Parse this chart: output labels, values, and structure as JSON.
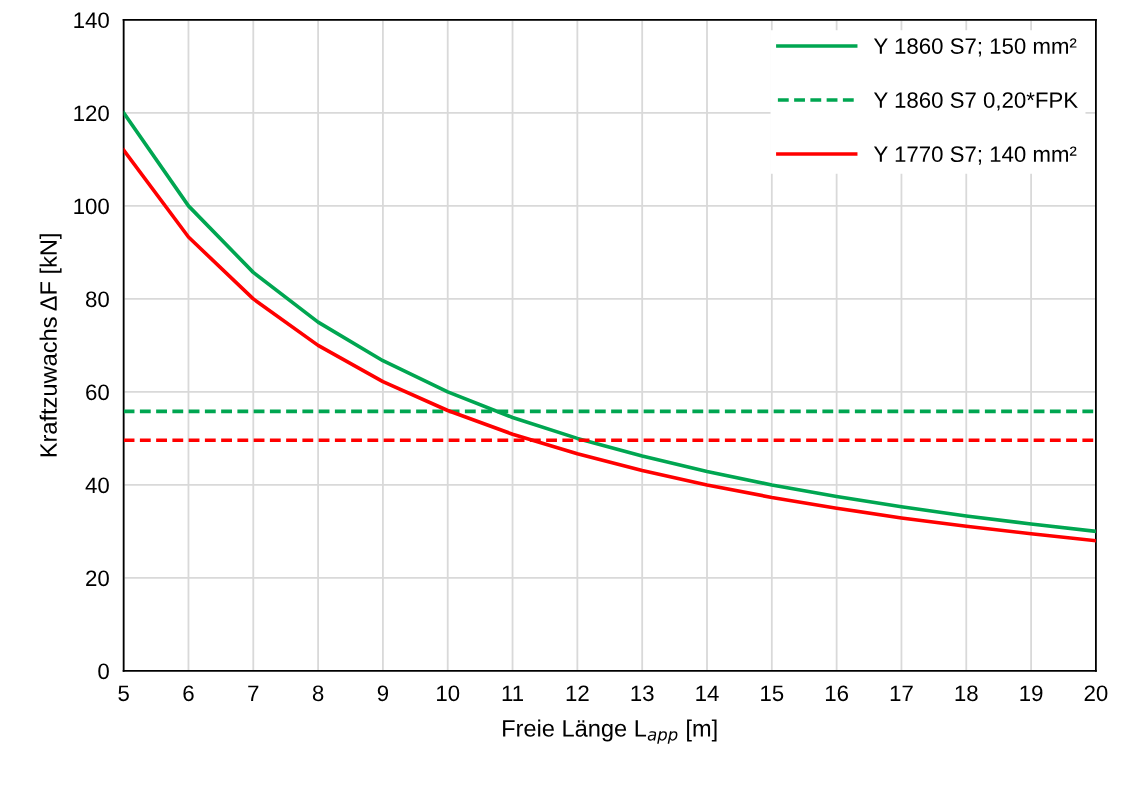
{
  "chart_data": {
    "type": "line",
    "xlabel": "Freie Länge L$_{app}$ [m]",
    "ylabel": "Kraftzuwachs ΔF [kN]",
    "xlim": [
      5,
      20
    ],
    "xticks": [
      5,
      6,
      7,
      8,
      9,
      10,
      11,
      12,
      13,
      14,
      15,
      16,
      17,
      18,
      19,
      20
    ],
    "ylim": [
      0,
      140
    ],
    "yticks": [
      0,
      20,
      40,
      60,
      80,
      100,
      120,
      140
    ],
    "grid": true,
    "legend": "top right",
    "marker": "none",
    "series": [
      {
        "name": "Y 1860 S7; 150 mm²",
        "color": "#00a651",
        "line_style": "solid",
        "x": [
          5,
          6,
          7,
          8,
          9,
          10,
          11,
          12,
          13,
          14,
          15,
          16,
          17,
          18,
          19,
          20
        ],
        "values": [
          120,
          100,
          85.7,
          75,
          66.7,
          60,
          54.5,
          50,
          46.2,
          42.9,
          40,
          37.5,
          35.3,
          33.3,
          31.6,
          30
        ]
      },
      {
        "name": "Y 1860 S7 0,20*FPK",
        "color": "#00a651",
        "line_style": "dashed",
        "x": [
          5,
          20
        ],
        "values": [
          55.8,
          55.8
        ]
      },
      {
        "name": "Y 1770 S7; 140 mm²",
        "color": "#ff0000",
        "line_style": "solid",
        "x": [
          5,
          6,
          7,
          8,
          9,
          10,
          11,
          12,
          13,
          14,
          15,
          16,
          17,
          18,
          19,
          20
        ],
        "values": [
          112,
          93.3,
          80,
          70,
          62.2,
          56,
          50.9,
          46.7,
          43.1,
          40,
          37.3,
          35,
          32.9,
          31.1,
          29.5,
          28
        ]
      },
      {
        "color": "#ff0000",
        "line_style": "dashed",
        "x": [
          5,
          20
        ],
        "values": [
          49.6,
          49.6
        ]
      }
    ]
  }
}
